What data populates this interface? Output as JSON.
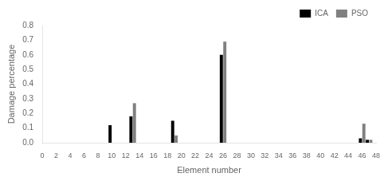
{
  "chart_data": {
    "type": "bar",
    "xlabel": "Element number",
    "ylabel": "Damage percentage",
    "series": [
      {
        "name": "ICA",
        "color": "#000000",
        "x": [
          10,
          13,
          19,
          26,
          46,
          47
        ],
        "values": [
          0.12,
          0.18,
          0.15,
          0.6,
          0.03,
          0.02
        ]
      },
      {
        "name": "PSO",
        "color": "#808080",
        "x": [
          13,
          19,
          26,
          46,
          47
        ],
        "values": [
          0.27,
          0.05,
          0.69,
          0.13,
          0.02
        ]
      }
    ],
    "xlim": [
      0,
      48
    ],
    "xticks": [
      0,
      2,
      4,
      6,
      8,
      10,
      12,
      14,
      16,
      18,
      20,
      22,
      24,
      26,
      28,
      30,
      32,
      34,
      36,
      38,
      40,
      42,
      44,
      46,
      48
    ],
    "ylim": [
      0,
      0.8
    ],
    "yticks": [
      {
        "value": 0,
        "label": "0.0"
      },
      0.1,
      0.2,
      0.3,
      0.4,
      0.5,
      0.6,
      0.7,
      0.8
    ],
    "grid": false,
    "legend": "upper right"
  }
}
